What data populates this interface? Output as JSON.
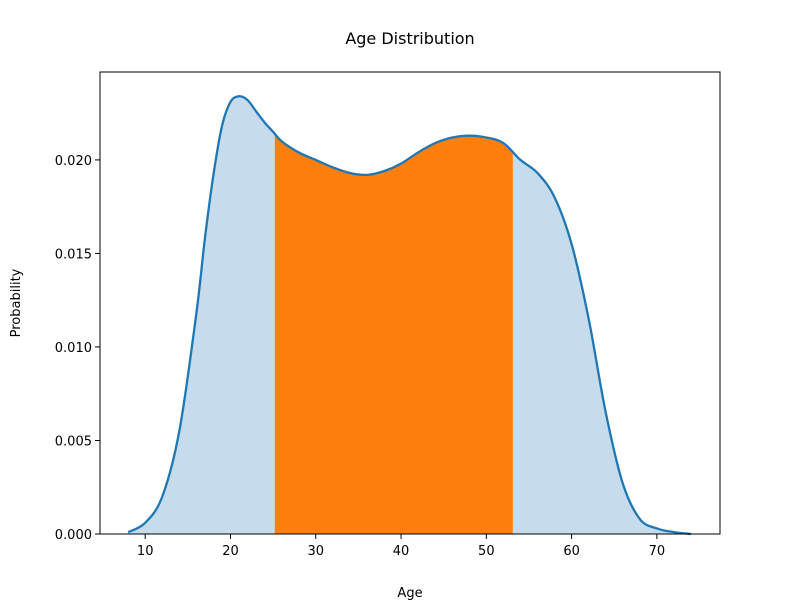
{
  "chart_data": {
    "type": "area",
    "title": "Age Distribution",
    "xlabel": "Age",
    "ylabel": "Probability",
    "xlim": [
      4.7,
      77.4
    ],
    "ylim": [
      0,
      0.0247
    ],
    "xticks": [
      10,
      20,
      30,
      40,
      50,
      60,
      70
    ],
    "xtick_labels": [
      "10",
      "20",
      "30",
      "40",
      "50",
      "60",
      "70"
    ],
    "yticks": [
      0,
      0.005,
      0.01,
      0.015,
      0.02
    ],
    "ytick_labels": [
      "0.000",
      "0.005",
      "0.010",
      "0.015",
      "0.020"
    ],
    "grid": false,
    "legend": "none",
    "highlight_range": [
      25.2,
      53.1
    ],
    "colors": {
      "line": "#1f77b4",
      "fill": "#c6dcec",
      "highlight": "#ff7f0e"
    },
    "series": [
      {
        "x": [
          8,
          10,
          12,
          14,
          16,
          17,
          18,
          19,
          20,
          21,
          22,
          23,
          24,
          25,
          26,
          28,
          30,
          32,
          34,
          36,
          38,
          40,
          42,
          44,
          46,
          48,
          50,
          52,
          54,
          56,
          58,
          60,
          62,
          64,
          66,
          68,
          70,
          72,
          74
        ],
        "y": [
          0.0001,
          0.0006,
          0.002,
          0.0055,
          0.0118,
          0.0158,
          0.0192,
          0.0218,
          0.0231,
          0.0234,
          0.0232,
          0.0226,
          0.022,
          0.0215,
          0.021,
          0.0204,
          0.02,
          0.0196,
          0.0193,
          0.0192,
          0.0194,
          0.0198,
          0.0204,
          0.0209,
          0.0212,
          0.0213,
          0.0212,
          0.0209,
          0.02,
          0.0193,
          0.018,
          0.0155,
          0.0115,
          0.0065,
          0.0027,
          0.0008,
          0.0003,
          0.0001,
          0.0
        ]
      }
    ]
  }
}
